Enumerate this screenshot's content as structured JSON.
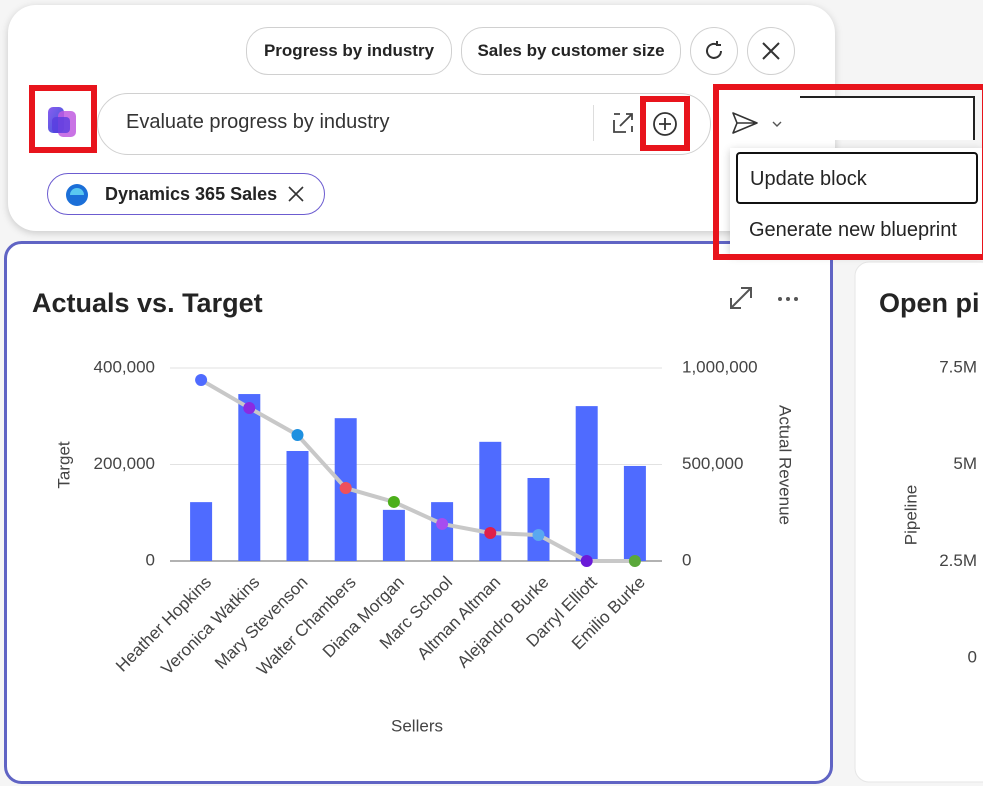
{
  "toolbar": {
    "suggestions": [
      "Progress by industry",
      "Sales by customer size"
    ],
    "prompt": "Evaluate progress by industry",
    "source_chip": "Dynamics 365 Sales"
  },
  "send_menu": {
    "items": [
      "Update block",
      "Generate new blueprint"
    ]
  },
  "chart_data": {
    "type": "bar-line",
    "title": "Actuals vs. Target",
    "x_label": "Sellers",
    "y_label": "Target",
    "y2_label": "Actual Revenue",
    "categories": [
      "Heather Hopkins",
      "Veronica Watkins",
      "Mary Stevenson",
      "Walter Chambers",
      "Diana Morgan",
      "Marc School",
      "Altman Altman",
      "Alejandro Burke",
      "Darryl Elliott",
      "Emilio Burke"
    ],
    "series": [
      {
        "name": "Target",
        "type": "bar",
        "color": "#4f6bff",
        "values": [
          122000,
          346000,
          228000,
          296000,
          106000,
          122000,
          247000,
          172000,
          321000,
          197000
        ]
      },
      {
        "name": "Actual Revenue",
        "type": "line",
        "axis": "y2",
        "color": "#c8c8c8",
        "values": [
          938000,
          793000,
          653000,
          378000,
          306000,
          192000,
          145000,
          135000,
          0,
          0
        ],
        "point_colors": [
          "#4f6bff",
          "#8a2be2",
          "#1e90e0",
          "#f0505a",
          "#4caf1a",
          "#a64cf0",
          "#e0204a",
          "#5aa8f0",
          "#6a1ad8",
          "#5aa83a"
        ]
      }
    ],
    "ylim": [
      0,
      400000
    ],
    "yticks": [
      0,
      {
        "value": 200000,
        "label": "200,000"
      },
      {
        "value": 400000,
        "label": "400,000"
      }
    ],
    "y2lim": [
      0,
      1000000
    ],
    "y2ticks": [
      0,
      {
        "value": 500000,
        "label": "500,000"
      },
      {
        "value": 1000000,
        "label": "1,000,000"
      }
    ],
    "grid": true
  },
  "side_chart": {
    "title": "Open pi",
    "y_label": "Pipeline",
    "ylim": [
      0,
      7500000
    ],
    "yticks": [
      0,
      {
        "value": 2500000,
        "label": "2.5M"
      },
      {
        "value": 5000000,
        "label": "5M"
      },
      {
        "value": 7500000,
        "label": "7.5M"
      }
    ]
  }
}
